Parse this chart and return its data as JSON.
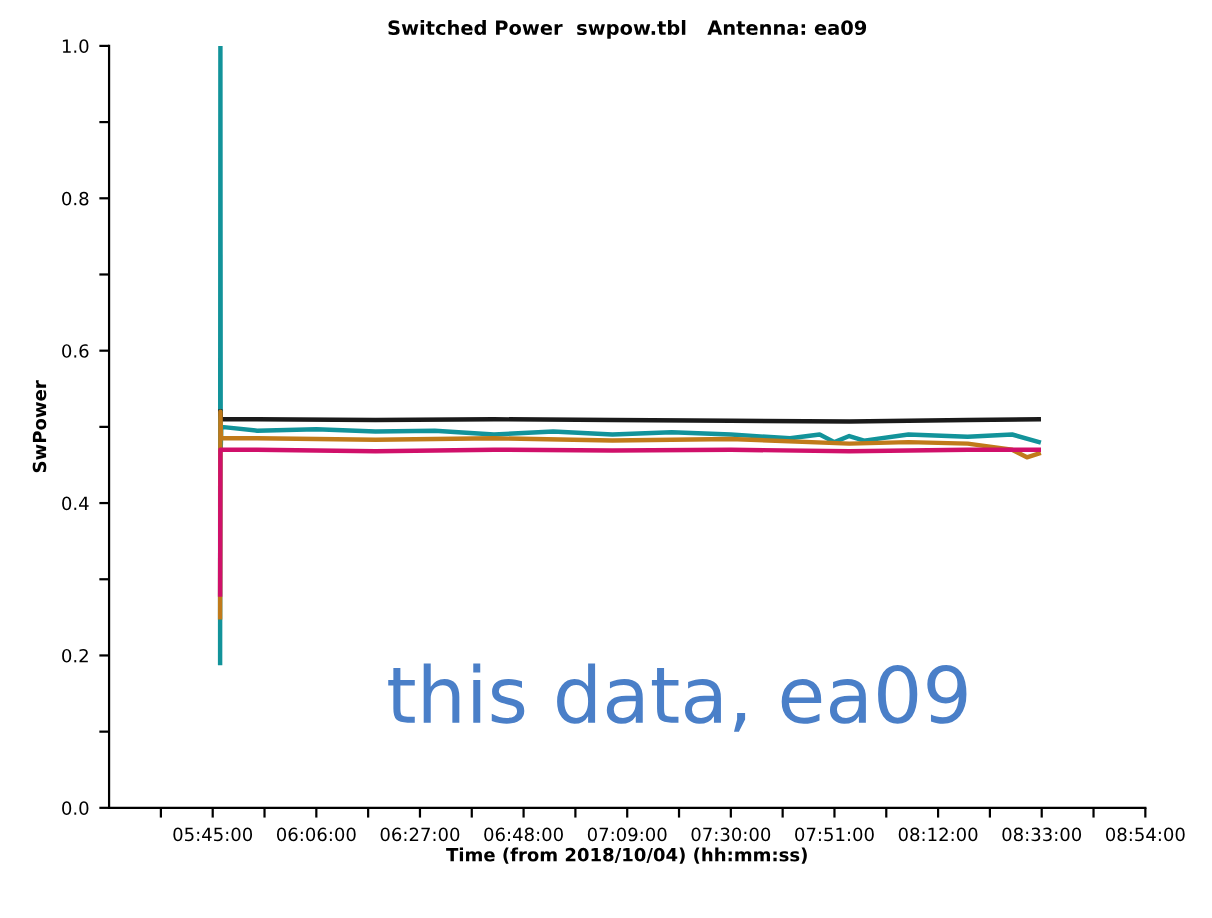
{
  "chart_data": {
    "type": "line",
    "title": "Switched Power  swpow.tbl   Antenna: ea09",
    "xlabel": "Time (from 2018/10/04) (hh:mm:ss)",
    "ylabel": "SwPower",
    "annotations": [
      "this data, ea09"
    ],
    "series": [
      {
        "color": "#12939a",
        "x": [
          5.775,
          5.776,
          5.777,
          5.779,
          5.9,
          6.1,
          6.3,
          6.5,
          6.7,
          6.9,
          7.1,
          7.3,
          7.5,
          7.7,
          7.8,
          7.85,
          7.9,
          7.95,
          8.1,
          8.3,
          8.45,
          8.54
        ],
        "values": [
          0.19,
          1.0,
          0.47,
          0.5,
          0.495,
          0.497,
          0.494,
          0.495,
          0.49,
          0.494,
          0.49,
          0.493,
          0.49,
          0.485,
          0.49,
          0.48,
          0.488,
          0.482,
          0.49,
          0.487,
          0.49,
          0.48
        ]
      },
      {
        "color": "#1a1a1a",
        "x": [
          5.776,
          5.778,
          5.9,
          6.3,
          6.7,
          7.1,
          7.5,
          7.9,
          8.3,
          8.54
        ],
        "values": [
          0.52,
          0.51,
          0.51,
          0.509,
          0.51,
          0.509,
          0.508,
          0.507,
          0.509,
          0.51
        ]
      },
      {
        "color": "#c07a1a",
        "x": [
          5.775,
          5.776,
          5.778,
          5.9,
          6.3,
          6.7,
          7.1,
          7.5,
          7.9,
          8.1,
          8.3,
          8.45,
          8.5,
          8.54
        ],
        "values": [
          0.25,
          0.52,
          0.485,
          0.485,
          0.483,
          0.485,
          0.482,
          0.484,
          0.478,
          0.48,
          0.478,
          0.47,
          0.46,
          0.465
        ]
      },
      {
        "color": "#d0106a",
        "x": [
          5.775,
          5.776,
          5.778,
          5.9,
          6.3,
          6.7,
          7.1,
          7.5,
          7.9,
          8.3,
          8.54
        ],
        "values": [
          0.28,
          0.47,
          0.47,
          0.47,
          0.468,
          0.47,
          0.469,
          0.47,
          0.468,
          0.47,
          0.47
        ]
      }
    ],
    "xlim": [
      5.4,
      8.9
    ],
    "xticks": [
      {
        "value": 5.575,
        "label": null
      },
      {
        "value": 5.75,
        "label": "05:45:00"
      },
      {
        "value": 5.925,
        "label": null
      },
      {
        "value": 6.1,
        "label": "06:06:00"
      },
      {
        "value": 6.275,
        "label": null
      },
      {
        "value": 6.45,
        "label": "06:27:00"
      },
      {
        "value": 6.625,
        "label": null
      },
      {
        "value": 6.8,
        "label": "06:48:00"
      },
      {
        "value": 6.975,
        "label": null
      },
      {
        "value": 7.15,
        "label": "07:09:00"
      },
      {
        "value": 7.325,
        "label": null
      },
      {
        "value": 7.5,
        "label": "07:30:00"
      },
      {
        "value": 7.675,
        "label": null
      },
      {
        "value": 7.85,
        "label": "07:51:00"
      },
      {
        "value": 8.025,
        "label": null
      },
      {
        "value": 8.2,
        "label": "08:12:00"
      },
      {
        "value": 8.375,
        "label": null
      },
      {
        "value": 8.55,
        "label": "08:33:00"
      },
      {
        "value": 8.725,
        "label": null
      },
      {
        "value": 8.9,
        "label": "08:54:00"
      }
    ],
    "ylim": [
      0,
      1
    ],
    "yticks": [
      {
        "value": 0,
        "label": "0.0"
      },
      {
        "value": 0.1,
        "label": null
      },
      {
        "value": 0.2,
        "label": "0.2"
      },
      {
        "value": 0.3,
        "label": null
      },
      {
        "value": 0.4,
        "label": "0.4"
      },
      {
        "value": 0.5,
        "label": null
      },
      {
        "value": 0.6,
        "label": "0.6"
      },
      {
        "value": 0.7,
        "label": null
      },
      {
        "value": 0.8,
        "label": "0.8"
      },
      {
        "value": 0.9,
        "label": null
      },
      {
        "value": 1,
        "label": "1.0"
      }
    ],
    "grid": false,
    "legend": false,
    "marker": "none",
    "line_style": "solid"
  }
}
